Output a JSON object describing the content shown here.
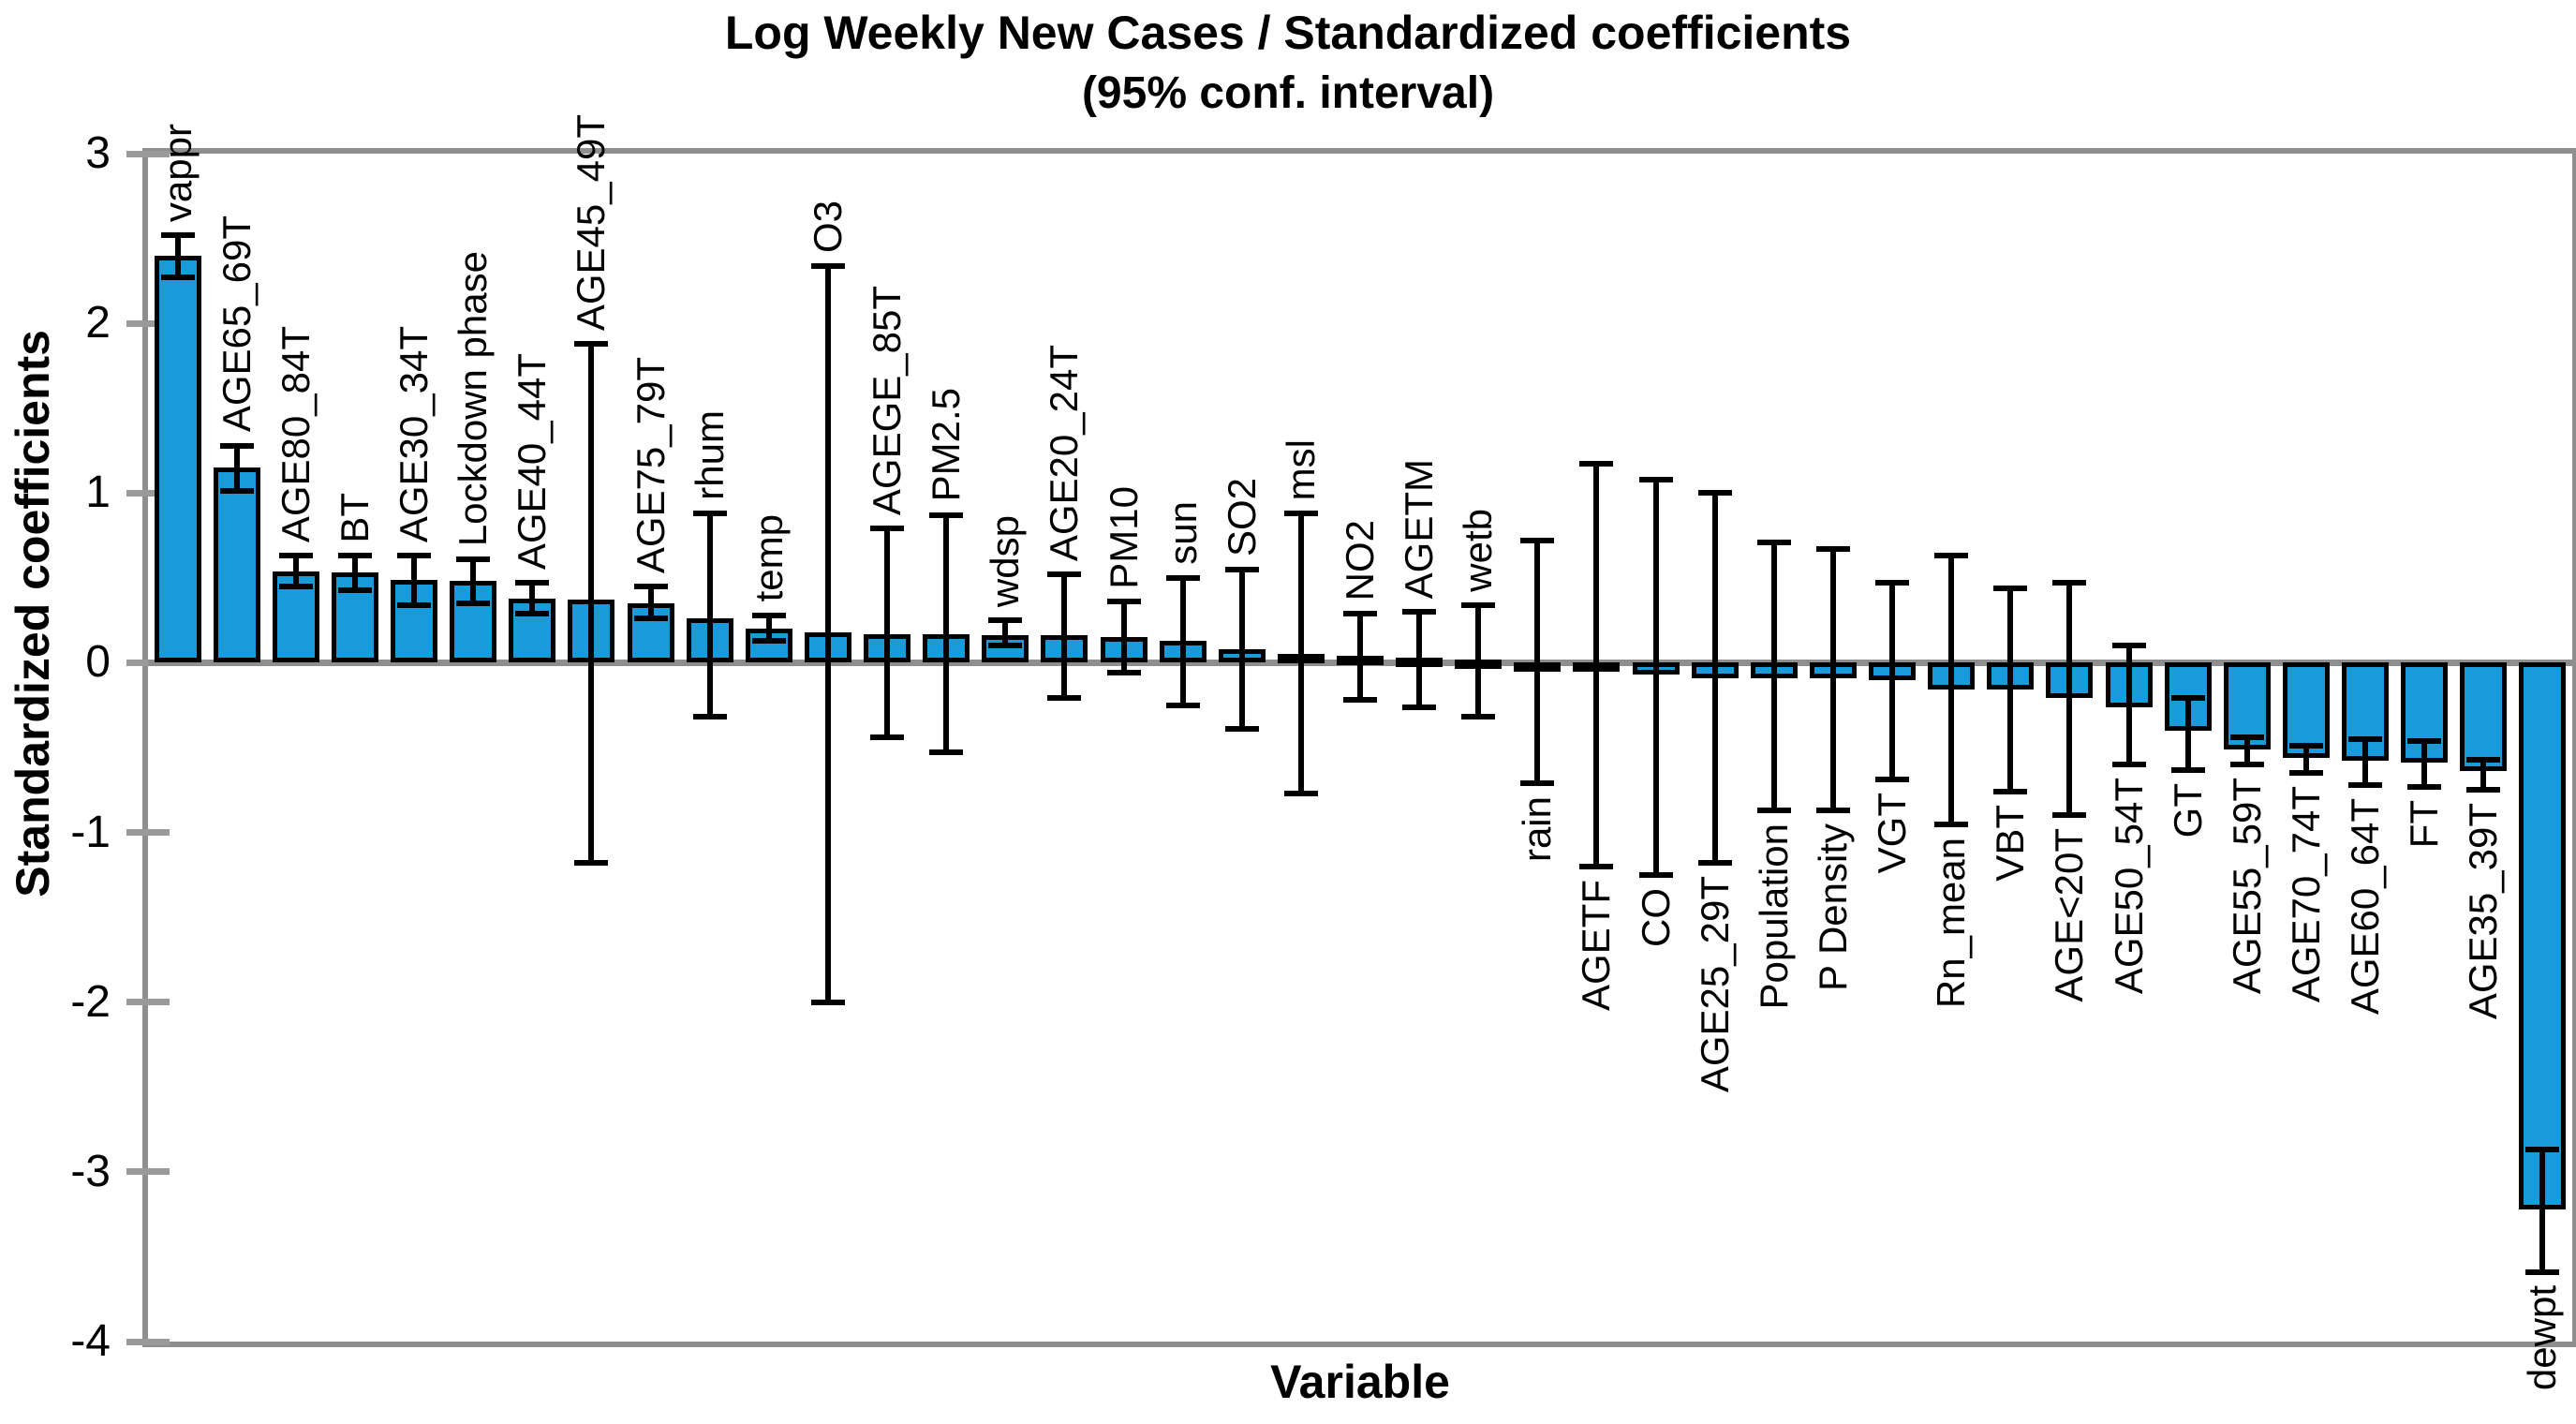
{
  "chart_data": {
    "type": "bar",
    "title": "Log Weekly New Cases / Standardized coefficients",
    "subtitle": "(95% conf. interval)",
    "xlabel": "Variable",
    "ylabel": "Standardized coefficients",
    "ylim": [
      -4,
      3
    ],
    "yticks": [
      3,
      2,
      1,
      0,
      -1,
      -2,
      -3,
      -4
    ],
    "grid": false,
    "legend": "none",
    "bar_color": "#1a9bd9",
    "axis_color": "#8e8e8e",
    "error_bar_color": "#000000",
    "categories": [
      "vappr",
      "AGE65_69T",
      "AGE80_84T",
      "BT",
      "AGE30_34T",
      "Lockdown phase",
      "AGE40_44T",
      "AGE45_49T",
      "AGE75_79T",
      "rhum",
      "temp",
      "O3",
      "AGEGE_85T",
      "PM2.5",
      "wdsp",
      "AGE20_24T",
      "PM10",
      "sun",
      "SO2",
      "msl",
      "NO2",
      "AGETM",
      "wetb",
      "rain",
      "AGETF",
      "CO",
      "AGE25_29T",
      "Population",
      "P Density",
      "VGT",
      "Rn_mean",
      "VBT",
      "AGE<20T",
      "AGE50_54T",
      "GT",
      "AGE55_59T",
      "AGE70_74T",
      "AGE60_64T",
      "FT",
      "AGE35_39T",
      "dewpt"
    ],
    "values": [
      2.4,
      1.15,
      0.54,
      0.53,
      0.49,
      0.48,
      0.38,
      0.37,
      0.35,
      0.26,
      0.2,
      0.18,
      0.17,
      0.17,
      0.16,
      0.16,
      0.15,
      0.13,
      0.08,
      0.05,
      0.04,
      0.03,
      0.02,
      -0.01,
      -0.04,
      -0.07,
      -0.09,
      -0.09,
      -0.09,
      -0.1,
      -0.16,
      -0.16,
      -0.21,
      -0.26,
      -0.4,
      -0.51,
      -0.56,
      -0.58,
      -0.59,
      -0.64,
      -3.22
    ],
    "ci_low": [
      2.27,
      1.01,
      0.45,
      0.43,
      0.34,
      0.35,
      0.29,
      -1.18,
      0.26,
      -0.32,
      0.13,
      -2.0,
      -0.44,
      -0.53,
      0.1,
      -0.21,
      -0.06,
      -0.25,
      -0.39,
      -0.77,
      -0.22,
      -0.26,
      -0.32,
      -0.71,
      -1.2,
      -1.25,
      -1.18,
      -0.87,
      -0.87,
      -0.69,
      -0.95,
      -0.76,
      -0.9,
      -0.6,
      -0.63,
      -0.6,
      -0.65,
      -0.72,
      -0.73,
      -0.75,
      -3.59
    ],
    "ci_high": [
      2.52,
      1.28,
      0.63,
      0.63,
      0.63,
      0.61,
      0.47,
      1.88,
      0.45,
      0.88,
      0.28,
      2.34,
      0.79,
      0.87,
      0.25,
      0.52,
      0.36,
      0.5,
      0.55,
      0.88,
      0.29,
      0.3,
      0.34,
      0.72,
      1.17,
      1.08,
      1.0,
      0.71,
      0.67,
      0.47,
      0.63,
      0.44,
      0.47,
      0.1,
      -0.21,
      -0.44,
      -0.49,
      -0.45,
      -0.46,
      -0.57,
      -2.87
    ]
  }
}
